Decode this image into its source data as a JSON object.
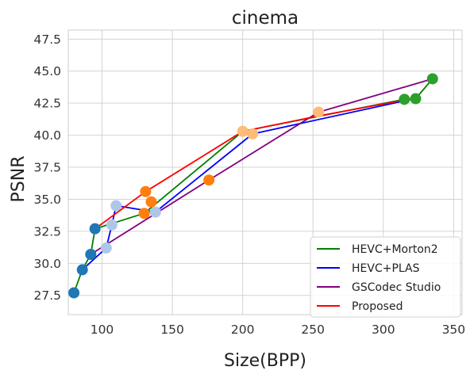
{
  "chart_data": {
    "type": "line",
    "title": "cinema",
    "xlabel": "Size(BPP)",
    "ylabel": "PSNR",
    "xlim": [
      76,
      356
    ],
    "ylim": [
      26,
      48.2
    ],
    "xticks": [
      100,
      150,
      200,
      250,
      300,
      350
    ],
    "yticks": [
      27.5,
      30.0,
      32.5,
      35.0,
      37.5,
      40.0,
      42.5,
      45.0,
      47.5
    ],
    "xtick_labels": [
      "100",
      "150",
      "200",
      "250",
      "300",
      "350"
    ],
    "ytick_labels": [
      "27.5",
      "30.0",
      "32.5",
      "35.0",
      "37.5",
      "40.0",
      "42.5",
      "45.0",
      "47.5"
    ],
    "grid": true,
    "legend": "lower-right",
    "series": [
      {
        "name": "HEVC+Morton2",
        "color": "#008000",
        "x": [
          80,
          86,
          92,
          95,
          130,
          200,
          315,
          323,
          335
        ],
        "y": [
          27.7,
          29.5,
          30.7,
          32.7,
          33.9,
          40.3,
          42.8,
          42.85,
          44.4
        ]
      },
      {
        "name": "HEVC+PLAS",
        "color": "#0000ff",
        "x": [
          86,
          103,
          107,
          110,
          138,
          207,
          320
        ],
        "y": [
          29.5,
          31.2,
          33.0,
          34.5,
          34.0,
          40.1,
          42.8
        ]
      },
      {
        "name": "GSCodec Studio",
        "color": "#800080",
        "x": [
          92,
          176,
          254,
          335
        ],
        "y": [
          30.7,
          36.5,
          41.8,
          44.4
        ]
      },
      {
        "name": "Proposed",
        "color": "#ff0000",
        "x": [
          95,
          131,
          200,
          254,
          323
        ],
        "y": [
          32.7,
          35.6,
          40.3,
          41.5,
          42.9
        ]
      }
    ],
    "markers": [
      {
        "x": 80,
        "y": 27.7,
        "color": "#1f77b4"
      },
      {
        "x": 86,
        "y": 29.5,
        "color": "#1f77b4"
      },
      {
        "x": 92,
        "y": 30.7,
        "color": "#1f77b4"
      },
      {
        "x": 95,
        "y": 32.7,
        "color": "#1f77b4"
      },
      {
        "x": 103,
        "y": 31.2,
        "color": "#aec7e8"
      },
      {
        "x": 107,
        "y": 33.0,
        "color": "#aec7e8"
      },
      {
        "x": 110,
        "y": 34.5,
        "color": "#aec7e8"
      },
      {
        "x": 138,
        "y": 34.0,
        "color": "#aec7e8"
      },
      {
        "x": 131,
        "y": 35.6,
        "color": "#ff7f0e"
      },
      {
        "x": 130,
        "y": 33.9,
        "color": "#ff7f0e"
      },
      {
        "x": 135,
        "y": 34.8,
        "color": "#ff7f0e"
      },
      {
        "x": 176,
        "y": 36.5,
        "color": "#ff7f0e"
      },
      {
        "x": 200,
        "y": 40.3,
        "color": "#ffbb78"
      },
      {
        "x": 207,
        "y": 40.1,
        "color": "#ffbb78"
      },
      {
        "x": 254,
        "y": 41.8,
        "color": "#ffbb78"
      },
      {
        "x": 315,
        "y": 42.8,
        "color": "#2ca02c"
      },
      {
        "x": 323,
        "y": 42.85,
        "color": "#2ca02c"
      },
      {
        "x": 335,
        "y": 44.4,
        "color": "#2ca02c"
      }
    ]
  }
}
